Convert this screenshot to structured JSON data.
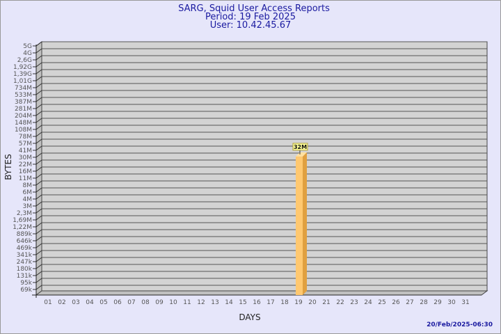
{
  "chart_data": {
    "type": "bar",
    "title": [
      "SARG, Squid User Access Reports",
      "Period: 19 Feb 2025",
      "User: 10.42.45.67"
    ],
    "xlabel": "DAYS",
    "ylabel": "BYTES",
    "y_scale": "log",
    "y_tick_labels": [
      "5G",
      "4G",
      "2,6G",
      "1,92G",
      "1,39G",
      "1,01G",
      "734M",
      "533M",
      "387M",
      "281M",
      "204M",
      "148M",
      "108M",
      "78M",
      "57M",
      "41M",
      "30M",
      "22M",
      "16M",
      "11M",
      "8M",
      "6M",
      "4M",
      "3M",
      "2,3M",
      "1,69M",
      "1,22M",
      "889k",
      "646k",
      "469k",
      "341k",
      "247k",
      "180k",
      "131k",
      "95k",
      "69k"
    ],
    "categories": [
      "01",
      "02",
      "03",
      "04",
      "05",
      "06",
      "07",
      "08",
      "09",
      "10",
      "11",
      "12",
      "13",
      "14",
      "15",
      "16",
      "17",
      "18",
      "19",
      "20",
      "21",
      "22",
      "23",
      "24",
      "25",
      "26",
      "27",
      "28",
      "29",
      "30",
      "31"
    ],
    "bars": [
      {
        "category": "19",
        "value": 32000000,
        "label": "32M"
      }
    ],
    "grid": true,
    "colors": {
      "bar_front": "#ffc870",
      "bar_side": "#e0a040",
      "plot_back": "#d3d3d3",
      "wall": "#c0c0c0",
      "background": "#e6e6fa",
      "label_box": "#ffff99"
    }
  },
  "footer": {
    "timestamp": "20/Feb/2025-06:30"
  }
}
